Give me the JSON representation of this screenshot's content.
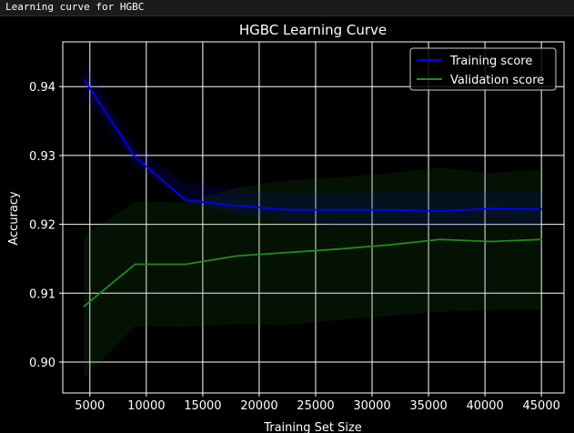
{
  "window": {
    "title": "Learning curve for HGBC"
  },
  "colors": {
    "background": "#000000",
    "grid": "#ffffff",
    "text": "#ffffff",
    "training": "#0000ff",
    "validation": "#228b22"
  },
  "chart_data": {
    "type": "line",
    "title": "HGBC Learning Curve",
    "xlabel": "Training Set Size",
    "ylabel": "Accuracy",
    "xlim": [
      2600,
      47000
    ],
    "ylim": [
      0.8955,
      0.9465
    ],
    "xticks": [
      5000,
      10000,
      15000,
      20000,
      25000,
      30000,
      35000,
      40000,
      45000
    ],
    "xtick_labels": [
      "5000",
      "10000",
      "15000",
      "20000",
      "25000",
      "30000",
      "35000",
      "40000",
      "45000"
    ],
    "yticks": [
      0.9,
      0.91,
      0.92,
      0.93,
      0.94
    ],
    "ytick_labels": [
      "0.90",
      "0.91",
      "0.92",
      "0.93",
      "0.94"
    ],
    "grid": true,
    "legend_position": "top-right",
    "x": [
      4500,
      9000,
      13500,
      18000,
      22500,
      27000,
      31500,
      36000,
      40500,
      45000
    ],
    "series": [
      {
        "name": "Training score",
        "color": "#0000ff",
        "values": [
          0.941,
          0.9298,
          0.9235,
          0.9227,
          0.9221,
          0.9221,
          0.9221,
          0.9219,
          0.9223,
          0.9222
        ],
        "band_upper": [
          0.9436,
          0.9312,
          0.926,
          0.925,
          0.9245,
          0.9245,
          0.9247,
          0.9248,
          0.9247,
          0.9247
        ],
        "band_lower": [
          0.9385,
          0.9285,
          0.9233,
          0.9215,
          0.9205,
          0.9198,
          0.9198,
          0.9195,
          0.9198,
          0.9197
        ]
      },
      {
        "name": "Validation score",
        "color": "#228b22",
        "values": [
          0.9081,
          0.9142,
          0.9142,
          0.9154,
          0.9159,
          0.9164,
          0.917,
          0.9178,
          0.9175,
          0.9178
        ],
        "band_upper": [
          0.9184,
          0.9233,
          0.9232,
          0.9253,
          0.9264,
          0.9268,
          0.9274,
          0.9282,
          0.9274,
          0.928
        ],
        "band_lower": [
          0.8977,
          0.9052,
          0.9051,
          0.9055,
          0.9054,
          0.9061,
          0.9067,
          0.9073,
          0.9075,
          0.9076
        ]
      }
    ]
  }
}
